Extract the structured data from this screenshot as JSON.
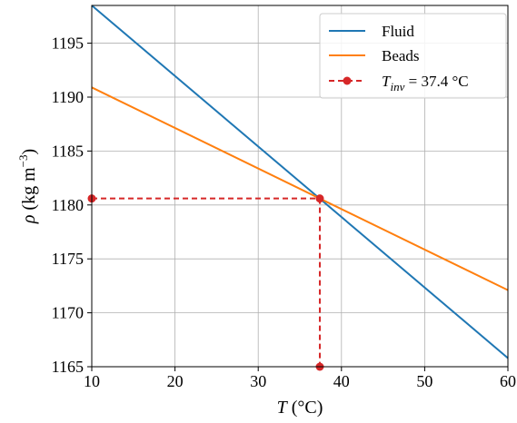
{
  "chart_data": {
    "type": "line",
    "xlim": [
      10,
      60
    ],
    "ylim": [
      1165,
      1198.5
    ],
    "xticks": [
      10,
      20,
      30,
      40,
      50,
      60
    ],
    "yticks": [
      1165,
      1170,
      1175,
      1180,
      1185,
      1190,
      1195
    ],
    "grid": true,
    "legend_position": "top-right",
    "xlabel": {
      "main": "T",
      "unit": " (°C)"
    },
    "ylabel": {
      "main": "ρ",
      "unit_pre": " (kg m",
      "unit_sup": "−3",
      "unit_post": ")"
    },
    "series": [
      {
        "name": "Fluid",
        "color": "#1f77b4",
        "x": [
          10,
          60
        ],
        "y": [
          1198.5,
          1165.8
        ]
      },
      {
        "name": "Beads",
        "color": "#ff7f0e",
        "x": [
          10,
          60
        ],
        "y": [
          1190.9,
          1172.1
        ]
      }
    ],
    "inversion": {
      "color": "#d62728",
      "label_var": "T",
      "label_sub": "inv",
      "label_value": " = 37.4 °C",
      "x": 37.4,
      "y": 1180.6
    }
  }
}
